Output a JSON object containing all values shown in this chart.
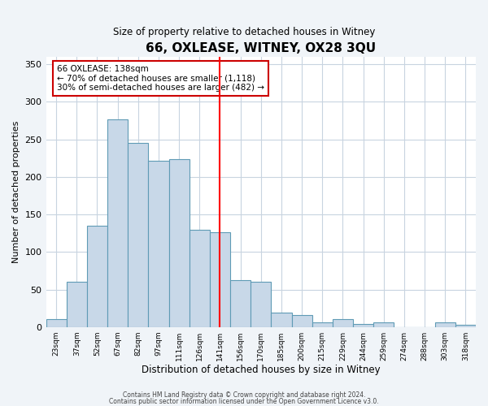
{
  "title": "66, OXLEASE, WITNEY, OX28 3QU",
  "subtitle": "Size of property relative to detached houses in Witney",
  "xlabel": "Distribution of detached houses by size in Witney",
  "ylabel": "Number of detached properties",
  "bin_labels": [
    "23sqm",
    "37sqm",
    "52sqm",
    "67sqm",
    "82sqm",
    "97sqm",
    "111sqm",
    "126sqm",
    "141sqm",
    "156sqm",
    "170sqm",
    "185sqm",
    "200sqm",
    "215sqm",
    "229sqm",
    "244sqm",
    "259sqm",
    "274sqm",
    "288sqm",
    "303sqm",
    "318sqm"
  ],
  "bar_heights": [
    10,
    60,
    135,
    277,
    245,
    221,
    224,
    130,
    126,
    62,
    60,
    19,
    16,
    6,
    10,
    4,
    6,
    0,
    0,
    6,
    3
  ],
  "bar_color": "#c8d8e8",
  "bar_edge_color": "#5f9bb5",
  "reference_line_x": 8,
  "annotation_title": "66 OXLEASE: 138sqm",
  "annotation_line1": "← 70% of detached houses are smaller (1,118)",
  "annotation_line2": "30% of semi-detached houses are larger (482) →",
  "annotation_box_color": "#ffffff",
  "annotation_box_edge_color": "#cc0000",
  "footnote1": "Contains HM Land Registry data © Crown copyright and database right 2024.",
  "footnote2": "Contains public sector information licensed under the Open Government Licence v3.0.",
  "ylim": [
    0,
    360
  ],
  "yticks": [
    0,
    50,
    100,
    150,
    200,
    250,
    300,
    350
  ],
  "bg_color": "#f0f4f8",
  "plot_bg_color": "#ffffff",
  "grid_color": "#c8d4e0"
}
